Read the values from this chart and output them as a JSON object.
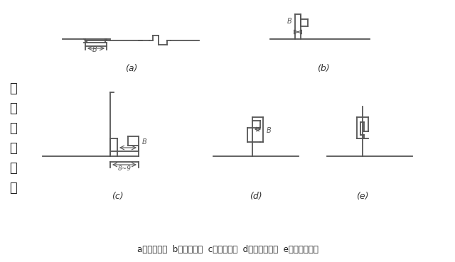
{
  "title": "各种咬口形式",
  "background_color": "#f5f5f5",
  "line_color": "#555555",
  "caption": "a）单平咬口  b）单立咬口  c）转角咬口  d）联合角咬口  e）按扣式咬口",
  "label_a": "(a)",
  "label_b": "(b)",
  "label_c": "(c)",
  "label_d": "(d)",
  "label_e": "(e)",
  "side_text": [
    "各",
    "种",
    "咬",
    "口",
    "形",
    "式"
  ]
}
